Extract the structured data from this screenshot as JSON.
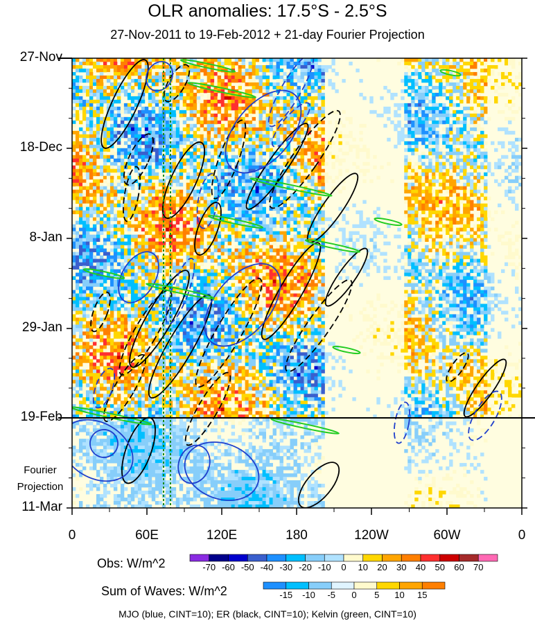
{
  "chart_data": {
    "type": "heatmap",
    "title": "OLR anomalies: 17.5°S - 2.5°S",
    "subtitle": "27-Nov-2011 to 19-Feb-2012 + 21-day Fourier Projection",
    "x_ticks": [
      "0",
      "60E",
      "120E",
      "180",
      "120W",
      "60W",
      "0"
    ],
    "y_ticks": [
      "27-Nov",
      "18-Dec",
      "8-Jan",
      "29-Jan",
      "19-Feb",
      "11-Mar"
    ],
    "projection_label": [
      "Fourier",
      "Projection"
    ],
    "projection_start": "19-Feb",
    "obs_colorbar": {
      "title": "Obs: W/m^2",
      "levels": [
        -70,
        -60,
        -50,
        -40,
        -30,
        -20,
        -10,
        0,
        10,
        20,
        30,
        40,
        50,
        60,
        70
      ],
      "colors": [
        "#8a2be2",
        "#00008b",
        "#0000cd",
        "#3a5fcd",
        "#1e90ff",
        "#00bfff",
        "#87cefa",
        "#b0e2ff",
        "#fffacd",
        "#ffd700",
        "#ffa500",
        "#ff7f00",
        "#ff3030",
        "#cd0000",
        "#a52a2a",
        "#ff69b4"
      ]
    },
    "waves_colorbar": {
      "title": "Sum of Waves: W/m^2",
      "levels": [
        -15,
        -10,
        -5,
        0,
        5,
        10,
        15
      ],
      "colors": [
        "#1e90ff",
        "#00bfff",
        "#87cefa",
        "#e0f4ff",
        "#fffacd",
        "#ffd700",
        "#ffa500",
        "#ff7f00"
      ]
    },
    "contours": [
      {
        "wave": "MJO",
        "color": "blue",
        "cint": 10
      },
      {
        "wave": "ER",
        "color": "black",
        "cint": 10
      },
      {
        "wave": "Kelvin",
        "color": "green",
        "cint": 10
      }
    ],
    "footer": "MJO (blue, CINT=10); ER (black, CINT=10); Kelvin (green, CINT=10)"
  }
}
